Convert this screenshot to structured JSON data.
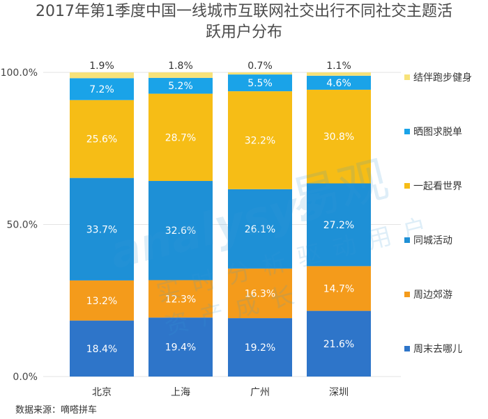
{
  "title_line1": "2017年第1季度中国一线城市互联网社交出行不同社交主题活",
  "title_line2": "跃用户分布",
  "source": "数据来源：嘀嗒拼车",
  "watermark": {
    "brand": "analysys",
    "cn": "易观",
    "slogan": "实时分析驱动用户资产成长"
  },
  "chart_data": {
    "type": "bar",
    "stacked": true,
    "categories": [
      "北京",
      "上海",
      "广州",
      "深圳"
    ],
    "y_ticks": [
      "100.0%",
      "50.0%",
      "0.0%"
    ],
    "ylim": [
      0,
      100
    ],
    "legend_position": "right",
    "series": [
      {
        "name": "周末去哪儿",
        "color": "#2e75c9",
        "values": [
          18.4,
          19.4,
          19.2,
          21.6
        ],
        "labels": [
          "18.4%",
          "19.4%",
          "19.2%",
          "21.6%"
        ]
      },
      {
        "name": "周边郊游",
        "color": "#f49b1b",
        "values": [
          13.2,
          12.3,
          16.3,
          14.7
        ],
        "labels": [
          "13.2%",
          "12.3%",
          "16.3%",
          "14.7%"
        ]
      },
      {
        "name": "同城活动",
        "color": "#1e90d6",
        "values": [
          33.7,
          32.6,
          26.1,
          27.2
        ],
        "labels": [
          "33.7%",
          "32.6%",
          "26.1%",
          "27.2%"
        ]
      },
      {
        "name": "一起看世界",
        "color": "#f6bd16",
        "values": [
          25.6,
          28.7,
          32.2,
          30.8
        ],
        "labels": [
          "25.6%",
          "28.7%",
          "32.2%",
          "30.8%"
        ]
      },
      {
        "name": "晒图求脱单",
        "color": "#1aa3e8",
        "values": [
          7.2,
          5.2,
          5.5,
          4.6
        ],
        "labels": [
          "7.2%",
          "5.2%",
          "5.5%",
          "4.6%"
        ]
      },
      {
        "name": "结伴跑步健身",
        "color": "#f7e27a",
        "values": [
          1.9,
          1.8,
          0.7,
          1.1
        ],
        "labels": [
          "1.9%",
          "1.8%",
          "0.7%",
          "1.1%"
        ]
      }
    ]
  }
}
